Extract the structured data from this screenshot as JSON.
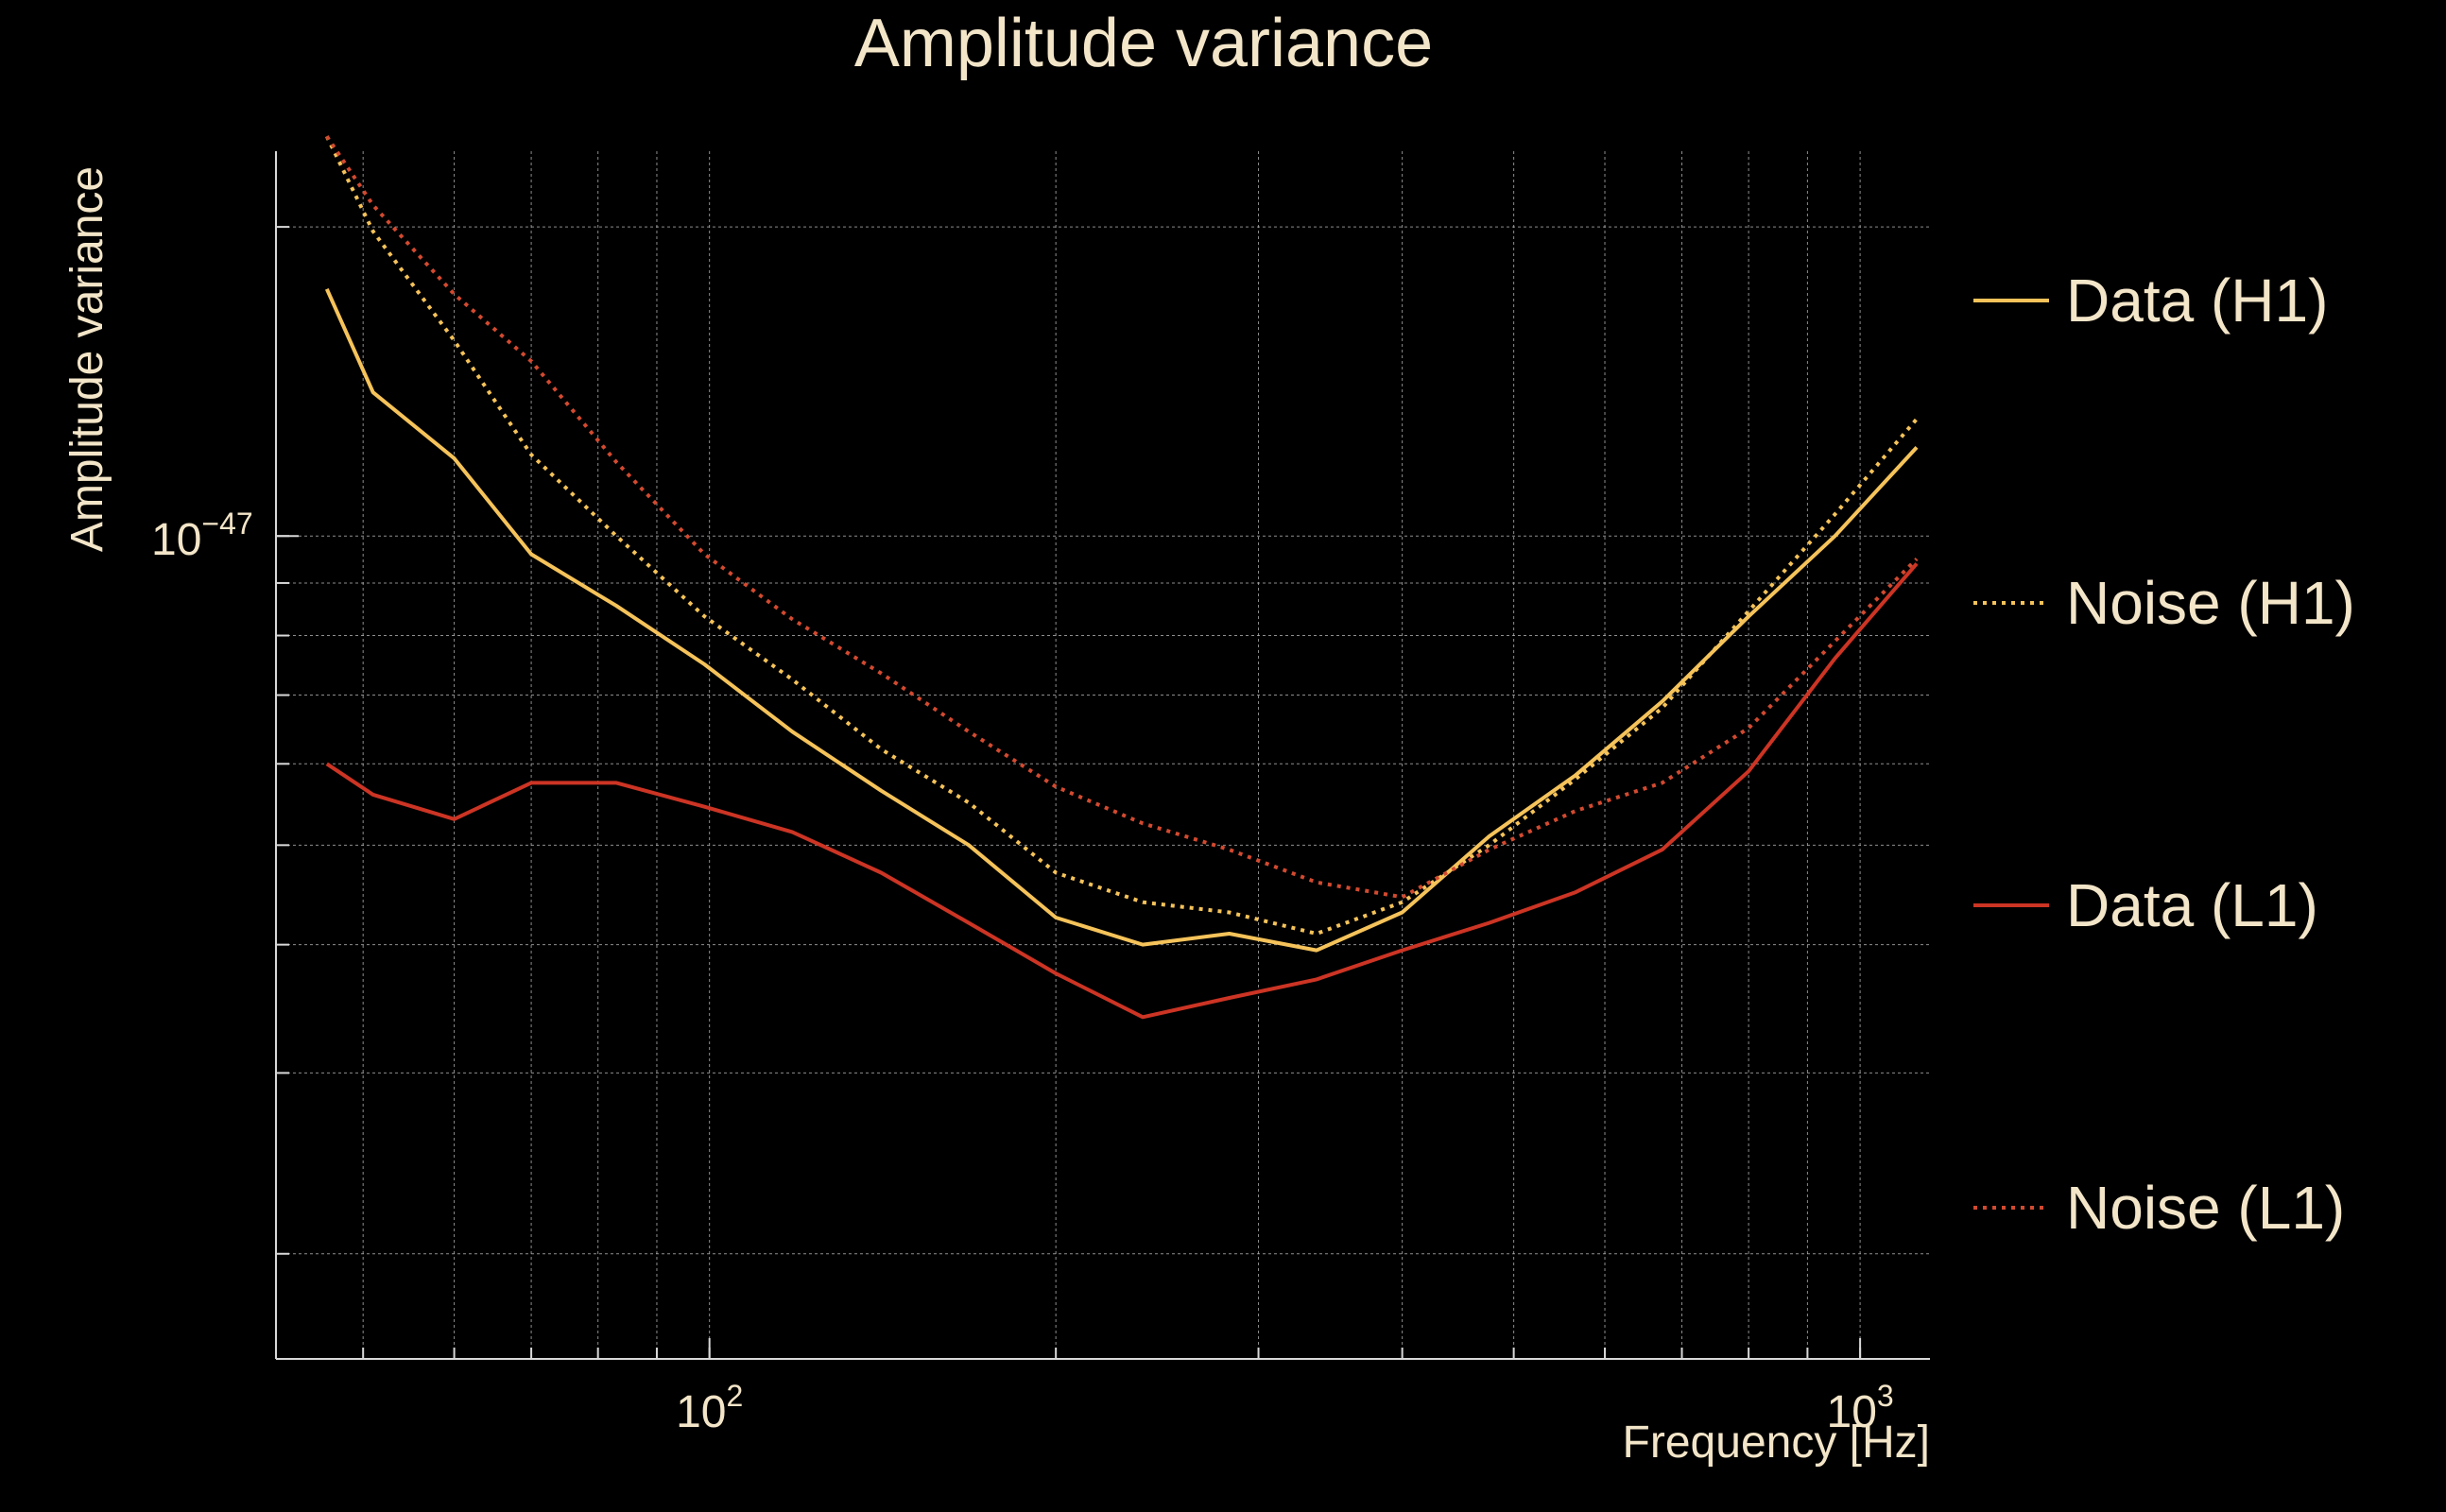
{
  "chart_data": {
    "type": "line",
    "title": "Amplitude variance",
    "xlabel": "Frequency [Hz]",
    "ylabel": "Amplitude variance",
    "xscale": "log",
    "yscale": "log",
    "xlim": [
      42,
      1150
    ],
    "ylim": [
      1.58e-48,
      2.37e-47
    ],
    "grid": true,
    "legend_position": "right",
    "x_ticks": [
      {
        "value": 100,
        "base": "10",
        "exp": "2"
      },
      {
        "value": 1000,
        "base": "10",
        "exp": "3"
      }
    ],
    "y_ticks": [
      {
        "value": 1e-47,
        "base": "10",
        "exp": "−47"
      }
    ],
    "x": [
      46.5,
      51,
      60,
      70,
      83,
      99,
      118,
      141,
      168,
      200,
      238,
      283,
      337,
      400,
      476,
      566,
      673,
      800,
      951,
      1120
    ],
    "series": [
      {
        "name": "Data (H1)",
        "color": "#f5c35a",
        "style": "solid",
        "values": [
          1.74e-47,
          1.38e-47,
          1.19e-47,
          9.6e-48,
          8.55e-48,
          7.5e-48,
          6.45e-48,
          5.65e-48,
          5e-48,
          4.25e-48,
          4e-48,
          4.1e-48,
          3.95e-48,
          4.3e-48,
          5.1e-48,
          5.85e-48,
          6.9e-48,
          8.35e-48,
          1e-47,
          1.22e-47
        ]
      },
      {
        "name": "Noise (H1)",
        "color": "#f5c35a",
        "style": "dotted",
        "values": [
          2.45e-47,
          1.98e-47,
          1.55e-47,
          1.2e-47,
          1e-47,
          8.35e-48,
          7.25e-48,
          6.2e-48,
          5.5e-48,
          4.7e-48,
          4.4e-48,
          4.3e-48,
          4.1e-48,
          4.4e-48,
          5e-48,
          5.8e-48,
          6.8e-48,
          8.45e-48,
          1.05e-47,
          1.3e-47
        ]
      },
      {
        "name": "Data (L1)",
        "color": "#cc3424",
        "style": "solid",
        "values": [
          6e-48,
          5.6e-48,
          5.3e-48,
          5.75e-48,
          5.75e-48,
          5.45e-48,
          5.15e-48,
          4.7e-48,
          4.2e-48,
          3.75e-48,
          3.4e-48,
          3.55e-48,
          3.7e-48,
          3.95e-48,
          4.2e-48,
          4.5e-48,
          4.95e-48,
          5.9e-48,
          7.6e-48,
          9.4e-48
        ]
      },
      {
        "name": "Noise (L1)",
        "color": "#d24a30",
        "style": "dotted",
        "values": [
          2.45e-47,
          2.1e-47,
          1.72e-47,
          1.48e-47,
          1.18e-47,
          9.6e-48,
          8.3e-48,
          7.35e-48,
          6.45e-48,
          5.7e-48,
          5.25e-48,
          4.95e-48,
          4.6e-48,
          4.45e-48,
          4.95e-48,
          5.4e-48,
          5.75e-48,
          6.5e-48,
          7.9e-48,
          9.5e-48
        ]
      }
    ]
  }
}
